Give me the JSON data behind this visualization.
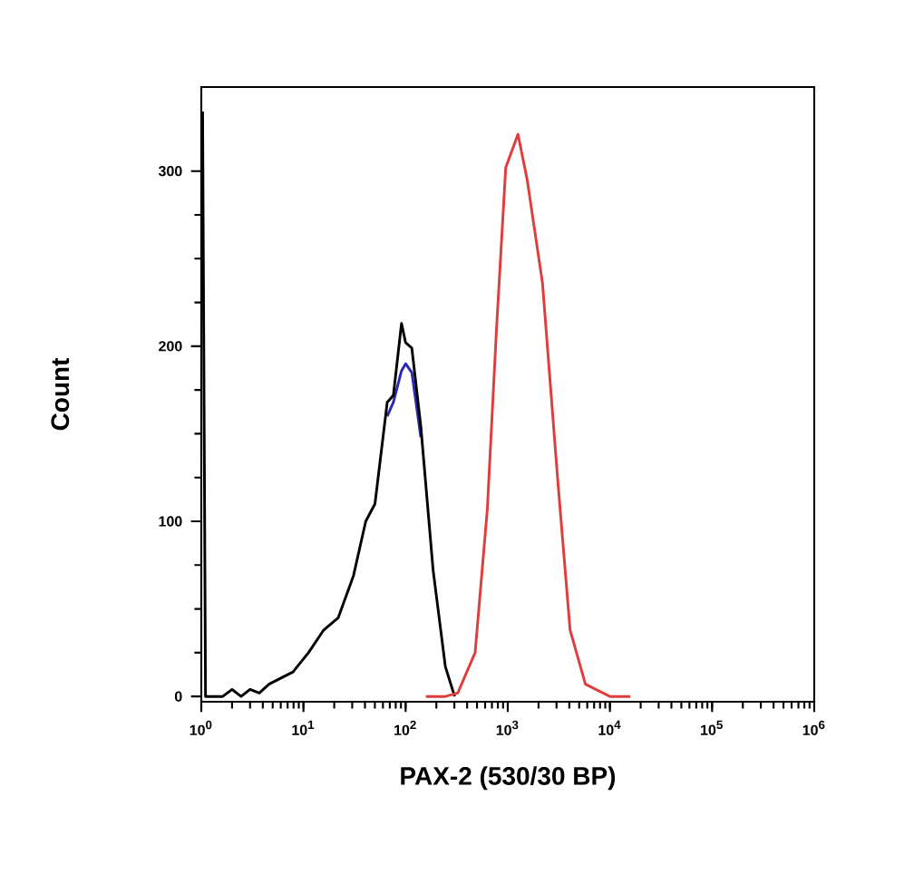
{
  "chart_data": {
    "type": "line",
    "xlabel": "PAX-2 (530/30 BP)",
    "ylabel": "Count",
    "log": "x",
    "xlim": [
      1,
      1000000
    ],
    "ylim": [
      -3,
      348
    ],
    "xticks": [
      {
        "value": 1,
        "label": "10$^{0}$"
      },
      {
        "value": 10,
        "label": "10$^{1}$"
      },
      {
        "value": 100,
        "label": "10$^{2}$"
      },
      {
        "value": 1000,
        "label": "10$^{3}$"
      },
      {
        "value": 10000,
        "label": "10$^{4}$"
      },
      {
        "value": 100000,
        "label": "10$^{5}$"
      },
      {
        "value": 1000000,
        "label": "10$^{6}$"
      }
    ],
    "yticks": [
      0,
      100,
      200,
      300
    ],
    "series": [
      {
        "color": "#2a2ab0",
        "x": [
          66.1,
          75.9,
          91.2,
          100,
          115,
          141
        ],
        "values": [
          160,
          168,
          186,
          190,
          185,
          148
        ]
      },
      {
        "color": "#000000",
        "x": [
          1.03,
          1.1,
          1.62,
          2.0,
          2.45,
          3.0,
          3.7,
          4.6,
          7.9,
          11.2,
          15.8,
          21.9,
          30.9,
          40.7,
          50.1,
          66.1,
          75.9,
          91.2,
          100,
          115,
          141,
          186,
          245,
          302
        ],
        "values": [
          334,
          0,
          0,
          4,
          0,
          4,
          2,
          7,
          14,
          25,
          38,
          45,
          69,
          100,
          110,
          168,
          172,
          213,
          202,
          199,
          154,
          72,
          17,
          0
        ]
      },
      {
        "color": "#e03c3c",
        "x": [
          158,
          245,
          324,
          479,
          631,
          776,
          955,
          1259,
          1549,
          2188,
          3090,
          4074,
          5754,
          10000,
          15849
        ],
        "values": [
          0,
          0,
          2,
          25,
          107,
          210,
          302,
          321,
          295,
          236,
          123,
          38,
          7,
          0,
          0
        ]
      }
    ]
  }
}
